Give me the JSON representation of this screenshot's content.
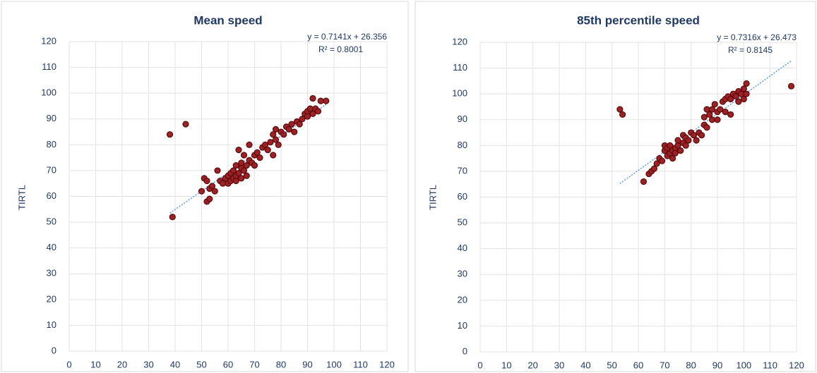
{
  "chart_data": [
    {
      "type": "scatter",
      "title": "Mean speed",
      "ylabel": "TIRTL",
      "annotations": [
        "y = 0.7141x + 26.356",
        "R² = 0.8001"
      ],
      "x": [
        38,
        44,
        39,
        50,
        51,
        52,
        52,
        53,
        53,
        54,
        55,
        56,
        57,
        58,
        59,
        60,
        60,
        61,
        61,
        62,
        62,
        63,
        63,
        63,
        64,
        64,
        65,
        65,
        65,
        66,
        66,
        67,
        67,
        68,
        68,
        69,
        70,
        70,
        71,
        72,
        73,
        74,
        75,
        76,
        77,
        77,
        78,
        78,
        79,
        80,
        81,
        82,
        83,
        84,
        85,
        86,
        87,
        88,
        89,
        90,
        90,
        91,
        92,
        92,
        93,
        94,
        95,
        97
      ],
      "values": [
        84,
        88,
        52,
        62,
        67,
        66,
        58,
        59,
        63,
        64,
        62,
        70,
        66,
        65,
        67,
        68,
        65,
        66,
        69,
        67,
        70,
        66,
        68,
        72,
        69,
        78,
        67,
        71,
        73,
        70,
        76,
        72,
        68,
        74,
        80,
        73,
        76,
        72,
        77,
        75,
        79,
        80,
        78,
        81,
        76,
        84,
        82,
        86,
        80,
        85,
        84,
        87,
        86,
        88,
        85,
        89,
        88,
        90,
        92,
        93,
        91,
        94,
        98,
        92,
        94,
        93,
        97,
        97
      ],
      "color": "#9b2226",
      "xlim": [
        0,
        120
      ],
      "xticks": [
        0,
        10,
        20,
        30,
        40,
        50,
        60,
        70,
        80,
        90,
        100,
        110,
        120
      ],
      "ylim": [
        0,
        120
      ],
      "yticks": [
        0,
        10,
        20,
        30,
        40,
        50,
        60,
        70,
        80,
        90,
        100,
        110,
        120
      ],
      "grid": true
    },
    {
      "type": "scatter",
      "title": "85th percentile speed",
      "ylabel": "TIRTL",
      "annotations": [
        "y = 0.7316x + 26.473",
        "R² = 0.8145"
      ],
      "x": [
        53,
        54,
        118,
        62,
        64,
        65,
        66,
        67,
        68,
        69,
        70,
        70,
        71,
        71,
        72,
        72,
        73,
        73,
        74,
        74,
        75,
        75,
        76,
        77,
        77,
        78,
        78,
        79,
        80,
        81,
        82,
        83,
        84,
        85,
        85,
        86,
        86,
        87,
        88,
        88,
        89,
        90,
        90,
        91,
        92,
        93,
        93,
        94,
        95,
        95,
        96,
        97,
        98,
        98,
        99,
        100,
        100,
        101,
        101
      ],
      "values": [
        94,
        92,
        103,
        66,
        69,
        70,
        71,
        73,
        75,
        74,
        78,
        80,
        76,
        79,
        77,
        80,
        75,
        78,
        79,
        77,
        80,
        82,
        78,
        81,
        84,
        80,
        83,
        82,
        85,
        84,
        82,
        85,
        84,
        88,
        91,
        94,
        87,
        92,
        94,
        90,
        96,
        93,
        90,
        94,
        97,
        98,
        93,
        99,
        98,
        92,
        100,
        99,
        101,
        97,
        100,
        102,
        98,
        104,
        100
      ],
      "color": "#9b2226",
      "xlim": [
        0,
        120
      ],
      "xticks": [
        0,
        10,
        20,
        30,
        40,
        50,
        60,
        70,
        80,
        90,
        100,
        110,
        120
      ],
      "ylim": [
        0,
        120
      ],
      "yticks": [
        0,
        10,
        20,
        30,
        40,
        50,
        60,
        70,
        80,
        90,
        100,
        110,
        120
      ],
      "grid": true
    }
  ]
}
